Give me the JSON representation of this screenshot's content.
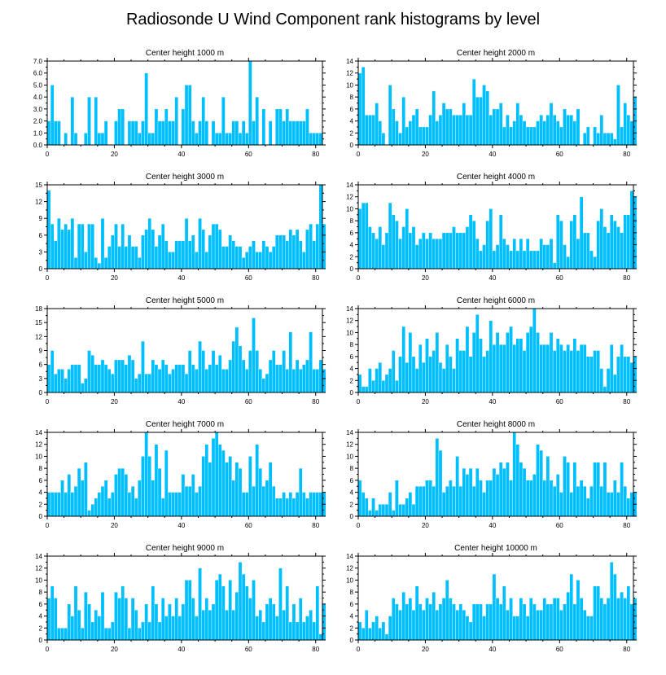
{
  "colors": {
    "bar": "#00bfff",
    "axis": "#000000",
    "background": "#ffffff"
  },
  "chart_data": {
    "type": "bar",
    "title": "Radiosonde U Wind Component rank histograms by level",
    "panels": [
      {
        "title": "Center height 1000 m",
        "ylim": [
          0,
          7
        ],
        "yticks": [
          "0.0",
          "1.0",
          "2.0",
          "3.0",
          "4.0",
          "5.0",
          "6.0",
          "7.0"
        ],
        "xlim": [
          0,
          82
        ],
        "xticks": [
          "0",
          "20",
          "40",
          "60",
          "80"
        ],
        "values": [
          2,
          5,
          2,
          2,
          0,
          1,
          0,
          4,
          1,
          0,
          0,
          1,
          4,
          0,
          4,
          1,
          1,
          2,
          0,
          0,
          2,
          3,
          3,
          0,
          2,
          2,
          2,
          1,
          2,
          6,
          1,
          1,
          3,
          2,
          2,
          3,
          2,
          2,
          4,
          0,
          3,
          5,
          5,
          2,
          1,
          2,
          4,
          2,
          0,
          2,
          1,
          1,
          4,
          1,
          1,
          2,
          2,
          1,
          2,
          1,
          7,
          2,
          4,
          0,
          3,
          0,
          2,
          0,
          3,
          3,
          2,
          3,
          2,
          2,
          2,
          2,
          2,
          3,
          1,
          1,
          1,
          1
        ]
      },
      {
        "title": "Center height 2000 m",
        "ylim": [
          0,
          14
        ],
        "yticks": [
          "0",
          "2",
          "4",
          "6",
          "8",
          "10",
          "12",
          "14"
        ],
        "xlim": [
          0,
          82
        ],
        "xticks": [
          "0",
          "20",
          "40",
          "60",
          "80"
        ],
        "values": [
          12,
          13,
          5,
          5,
          5,
          7,
          4,
          2,
          0,
          10,
          6,
          4,
          2,
          8,
          3,
          4,
          5,
          6,
          3,
          3,
          3,
          5,
          9,
          4,
          5,
          7,
          6,
          6,
          5,
          5,
          5,
          7,
          5,
          5,
          11,
          8,
          8,
          10,
          9,
          5,
          6,
          6,
          7,
          3,
          5,
          3,
          4,
          7,
          5,
          4,
          3,
          3,
          3,
          4,
          5,
          4,
          5,
          7,
          5,
          4,
          3,
          6,
          5,
          5,
          4,
          6,
          0,
          2,
          3,
          0,
          3,
          2,
          5,
          2,
          2,
          2,
          1,
          10,
          3,
          7,
          5,
          4,
          8
        ]
      },
      {
        "title": "Center height 3000 m",
        "ylim": [
          0,
          15
        ],
        "yticks": [
          "0",
          "3",
          "6",
          "9",
          "12",
          "15"
        ],
        "xlim": [
          0,
          82
        ],
        "xticks": [
          "0",
          "20",
          "40",
          "60",
          "80"
        ],
        "values": [
          14,
          8,
          5,
          9,
          7,
          8,
          7,
          9,
          2,
          8,
          8,
          3,
          8,
          8,
          2,
          1,
          9,
          2,
          4,
          6,
          8,
          4,
          8,
          4,
          6,
          4,
          4,
          2,
          6,
          7,
          9,
          7,
          4,
          6,
          8,
          5,
          3,
          3,
          5,
          5,
          5,
          9,
          5,
          6,
          3,
          9,
          7,
          3,
          6,
          8,
          8,
          7,
          4,
          4,
          6,
          5,
          4,
          4,
          2,
          3,
          4,
          5,
          3,
          3,
          5,
          4,
          3,
          4,
          6,
          6,
          6,
          5,
          7,
          6,
          7,
          5,
          3,
          7,
          8,
          5,
          8,
          15,
          8
        ]
      },
      {
        "title": "Center height 4000 m",
        "ylim": [
          0,
          14
        ],
        "yticks": [
          "0",
          "2",
          "4",
          "6",
          "8",
          "10",
          "12",
          "14"
        ],
        "xlim": [
          0,
          82
        ],
        "xticks": [
          "0",
          "20",
          "40",
          "60",
          "80"
        ],
        "values": [
          10,
          11,
          11,
          7,
          6,
          5,
          7,
          4,
          6,
          11,
          9,
          8,
          5,
          7,
          10,
          6,
          7,
          4,
          5,
          6,
          5,
          6,
          5,
          5,
          5,
          6,
          6,
          6,
          7,
          6,
          6,
          6,
          7,
          9,
          8,
          5,
          3,
          4,
          8,
          10,
          3,
          4,
          9,
          5,
          4,
          3,
          5,
          3,
          5,
          3,
          5,
          3,
          3,
          3,
          5,
          4,
          4,
          5,
          1,
          9,
          8,
          4,
          2,
          8,
          9,
          5,
          12,
          6,
          6,
          3,
          2,
          8,
          10,
          7,
          6,
          9,
          8,
          7,
          6,
          9,
          9,
          13,
          12
        ]
      },
      {
        "title": "Center height 5000 m",
        "ylim": [
          0,
          18
        ],
        "yticks": [
          "0",
          "3",
          "6",
          "9",
          "12",
          "15",
          "18"
        ],
        "xlim": [
          0,
          82
        ],
        "xticks": [
          "0",
          "20",
          "40",
          "60",
          "80"
        ],
        "values": [
          6,
          9,
          4,
          5,
          5,
          3,
          5,
          6,
          6,
          6,
          2,
          3,
          9,
          8,
          6,
          6,
          7,
          6,
          5,
          4,
          7,
          7,
          7,
          6,
          8,
          7,
          3,
          4,
          11,
          4,
          4,
          7,
          6,
          5,
          7,
          6,
          4,
          5,
          6,
          6,
          6,
          4,
          9,
          6,
          5,
          11,
          9,
          5,
          6,
          9,
          6,
          8,
          5,
          5,
          7,
          11,
          14,
          10,
          7,
          5,
          9,
          16,
          9,
          5,
          3,
          4,
          7,
          9,
          6,
          6,
          9,
          5,
          13,
          5,
          7,
          5,
          6,
          7,
          13,
          5,
          5,
          7,
          5
        ]
      },
      {
        "title": "Center height 6000 m",
        "ylim": [
          0,
          14
        ],
        "yticks": [
          "0",
          "2",
          "4",
          "6",
          "8",
          "10",
          "12",
          "14"
        ],
        "xlim": [
          0,
          82
        ],
        "xticks": [
          "0",
          "20",
          "40",
          "60",
          "80"
        ],
        "values": [
          3,
          1,
          1,
          4,
          2,
          4,
          5,
          2,
          3,
          4,
          7,
          2,
          6,
          11,
          5,
          10,
          6,
          4,
          8,
          5,
          9,
          6,
          7,
          10,
          5,
          4,
          8,
          6,
          4,
          9,
          7,
          7,
          11,
          6,
          10,
          13,
          9,
          6,
          7,
          12,
          8,
          10,
          8,
          8,
          10,
          11,
          8,
          9,
          9,
          7,
          10,
          11,
          14,
          10,
          8,
          8,
          8,
          10,
          7,
          9,
          8,
          7,
          8,
          7,
          9,
          7,
          8,
          8,
          6,
          6,
          7,
          7,
          4,
          1,
          4,
          8,
          3,
          6,
          8,
          6,
          6,
          5,
          6
        ]
      },
      {
        "title": "Center height 7000 m",
        "ylim": [
          0,
          14
        ],
        "yticks": [
          "0",
          "2",
          "4",
          "6",
          "8",
          "10",
          "12",
          "14"
        ],
        "xlim": [
          0,
          82
        ],
        "xticks": [
          "0",
          "20",
          "40",
          "60",
          "80"
        ],
        "values": [
          4,
          4,
          4,
          4,
          6,
          4,
          7,
          4,
          5,
          8,
          6,
          9,
          1,
          2,
          3,
          4,
          5,
          6,
          3,
          4,
          7,
          8,
          8,
          7,
          4,
          5,
          3,
          6,
          10,
          14,
          10,
          6,
          12,
          8,
          3,
          11,
          4,
          4,
          4,
          4,
          7,
          5,
          5,
          7,
          4,
          5,
          10,
          12,
          9,
          13,
          14,
          12,
          11,
          9,
          10,
          6,
          9,
          8,
          4,
          4,
          10,
          5,
          12,
          8,
          5,
          6,
          9,
          5,
          3,
          3,
          4,
          3,
          4,
          3,
          4,
          8,
          4,
          3,
          4,
          4,
          4,
          4,
          4
        ]
      },
      {
        "title": "Center height 8000 m",
        "ylim": [
          0,
          14
        ],
        "yticks": [
          "0",
          "2",
          "4",
          "6",
          "8",
          "10",
          "12",
          "14"
        ],
        "xlim": [
          0,
          82
        ],
        "xticks": [
          "0",
          "20",
          "40",
          "60",
          "80"
        ],
        "values": [
          6,
          4,
          3,
          1,
          3,
          1,
          2,
          2,
          2,
          4,
          1,
          6,
          2,
          2,
          3,
          4,
          2,
          5,
          5,
          5,
          6,
          6,
          5,
          13,
          11,
          4,
          5,
          6,
          5,
          10,
          5,
          8,
          7,
          8,
          5,
          8,
          6,
          4,
          6,
          6,
          8,
          7,
          9,
          8,
          9,
          6,
          14,
          12,
          9,
          8,
          6,
          6,
          7,
          12,
          11,
          6,
          10,
          6,
          5,
          7,
          4,
          10,
          9,
          4,
          9,
          5,
          6,
          5,
          3,
          5,
          9,
          9,
          5,
          9,
          4,
          4,
          6,
          4,
          9,
          5,
          3,
          4,
          4
        ]
      },
      {
        "title": "Center height 9000 m",
        "ylim": [
          0,
          14
        ],
        "yticks": [
          "0",
          "2",
          "4",
          "6",
          "8",
          "10",
          "12",
          "14"
        ],
        "xlim": [
          0,
          82
        ],
        "xticks": [
          "0",
          "20",
          "40",
          "60",
          "80"
        ],
        "values": [
          7,
          9,
          7,
          2,
          2,
          2,
          6,
          4,
          9,
          5,
          2,
          8,
          6,
          3,
          5,
          4,
          8,
          2,
          2,
          3,
          8,
          7,
          9,
          7,
          2,
          7,
          5,
          2,
          3,
          6,
          3,
          9,
          6,
          3,
          7,
          4,
          6,
          4,
          7,
          4,
          6,
          10,
          10,
          7,
          4,
          12,
          5,
          7,
          5,
          6,
          10,
          11,
          9,
          5,
          10,
          5,
          8,
          13,
          11,
          9,
          7,
          10,
          4,
          5,
          3,
          6,
          7,
          6,
          4,
          12,
          5,
          9,
          3,
          6,
          3,
          7,
          3,
          4,
          5,
          3,
          9,
          1,
          6
        ]
      },
      {
        "title": "Center height 10000 m",
        "ylim": [
          0,
          14
        ],
        "yticks": [
          "0",
          "2",
          "4",
          "6",
          "8",
          "10",
          "12",
          "14"
        ],
        "xlim": [
          0,
          82
        ],
        "xticks": [
          "0",
          "20",
          "40",
          "60",
          "80"
        ],
        "values": [
          3,
          2,
          5,
          2,
          3,
          4,
          2,
          3,
          1,
          4,
          7,
          6,
          5,
          8,
          6,
          7,
          5,
          9,
          6,
          5,
          7,
          6,
          8,
          5,
          6,
          7,
          10,
          7,
          6,
          5,
          6,
          5,
          4,
          3,
          6,
          6,
          6,
          4,
          6,
          6,
          11,
          7,
          6,
          9,
          5,
          7,
          4,
          4,
          7,
          6,
          4,
          7,
          6,
          5,
          5,
          7,
          6,
          6,
          7,
          7,
          5,
          6,
          8,
          11,
          6,
          10,
          7,
          5,
          4,
          4,
          9,
          9,
          7,
          6,
          7,
          13,
          11,
          7,
          8,
          7,
          9,
          6,
          7
        ]
      }
    ]
  }
}
